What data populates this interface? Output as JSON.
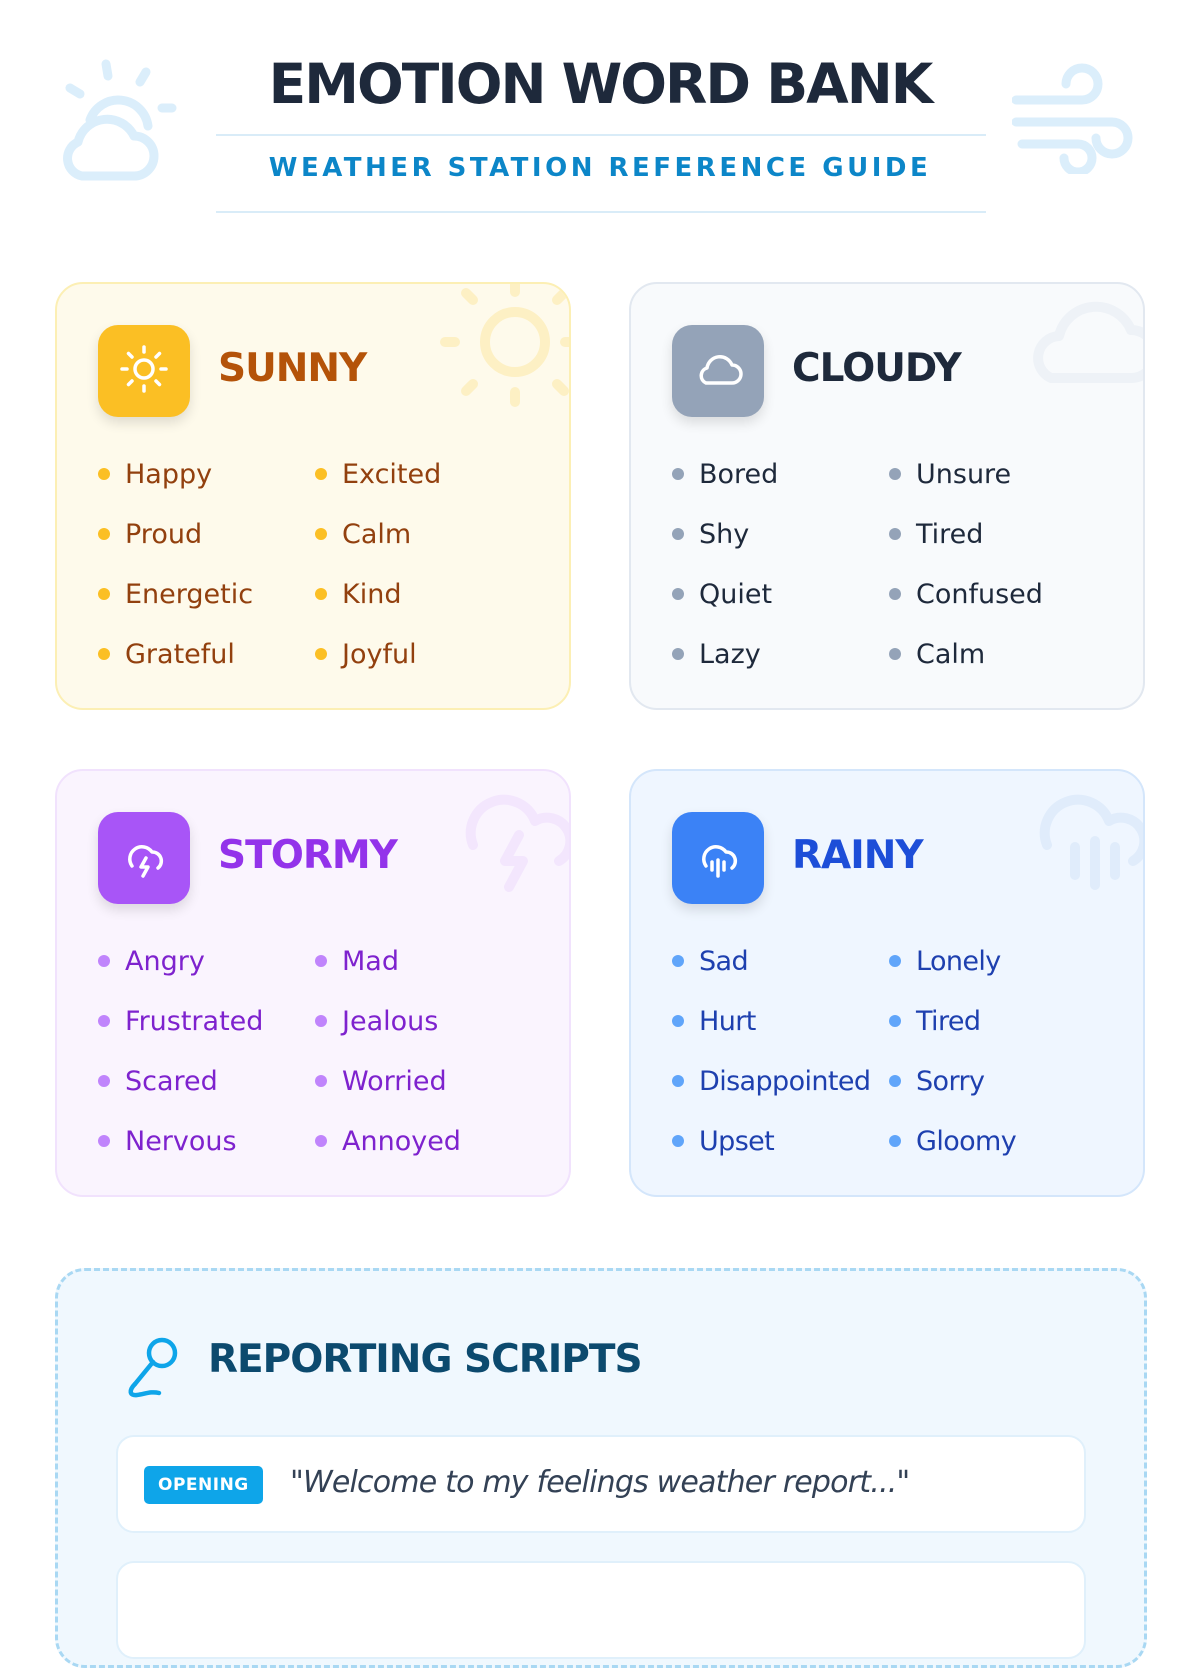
{
  "header": {
    "title": "EMOTION WORD BANK",
    "subtitle": "WEATHER STATION REFERENCE GUIDE",
    "decorations": [
      "sun-cloud-icon",
      "wind-icon"
    ]
  },
  "cards": [
    {
      "key": "sunny",
      "title": "SUNNY",
      "icon": "sun-icon",
      "accent": "#fbbf24",
      "words": [
        "Happy",
        "Excited",
        "Proud",
        "Calm",
        "Energetic",
        "Kind",
        "Grateful",
        "Joyful"
      ]
    },
    {
      "key": "cloudy",
      "title": "CLOUDY",
      "icon": "cloud-icon",
      "accent": "#94a3b8",
      "words": [
        "Bored",
        "Unsure",
        "Shy",
        "Tired",
        "Quiet",
        "Confused",
        "Lazy",
        "Calm"
      ]
    },
    {
      "key": "stormy",
      "title": "STORMY",
      "icon": "storm-cloud-icon",
      "accent": "#a855f7",
      "words": [
        "Angry",
        "Mad",
        "Frustrated",
        "Jealous",
        "Scared",
        "Worried",
        "Nervous",
        "Annoyed"
      ]
    },
    {
      "key": "rainy",
      "title": "RAINY",
      "icon": "rain-cloud-icon",
      "accent": "#3b82f6",
      "words": [
        "Sad",
        "Lonely",
        "Hurt",
        "Tired",
        "Disappointed",
        "Sorry",
        "Upset",
        "Gloomy"
      ]
    }
  ],
  "scripts": {
    "title": "REPORTING SCRIPTS",
    "icon": "microphone-icon",
    "items": [
      {
        "tag": "OPENING",
        "quote": "\"Welcome to my feelings weather report...\""
      },
      {
        "tag": "",
        "quote": ""
      }
    ]
  }
}
